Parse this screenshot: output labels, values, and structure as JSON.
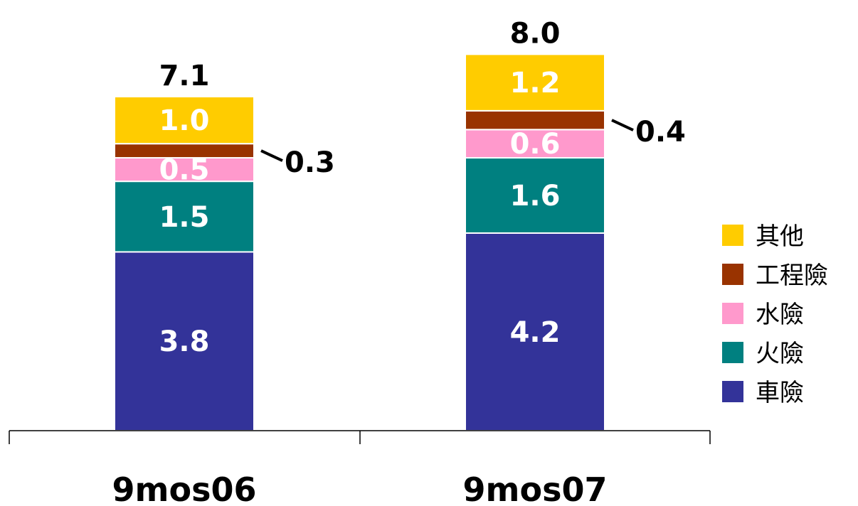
{
  "chart_data": {
    "type": "bar",
    "stacked": true,
    "categories": [
      "9mos06",
      "9mos07"
    ],
    "series": [
      {
        "name": "車險",
        "values": [
          3.8,
          4.2
        ],
        "color": "#333399"
      },
      {
        "name": "火險",
        "values": [
          1.5,
          1.6
        ],
        "color": "#008080"
      },
      {
        "name": "水險",
        "values": [
          0.5,
          0.6
        ],
        "color": "#ff99cc"
      },
      {
        "name": "工程險",
        "values": [
          0.3,
          0.4
        ],
        "color": "#993300"
      },
      {
        "name": "其他",
        "values": [
          1.0,
          1.2
        ],
        "color": "#ffcc00"
      }
    ],
    "segment_labels": [
      [
        "3.8",
        "1.5",
        "0.5",
        "",
        "1.0"
      ],
      [
        "4.2",
        "1.6",
        "0.6",
        "",
        "1.2"
      ]
    ],
    "callout_labels": [
      "0.3",
      "0.4"
    ],
    "totals": [
      "7.1",
      "8.0"
    ],
    "legend_position": "right",
    "grid": false
  }
}
